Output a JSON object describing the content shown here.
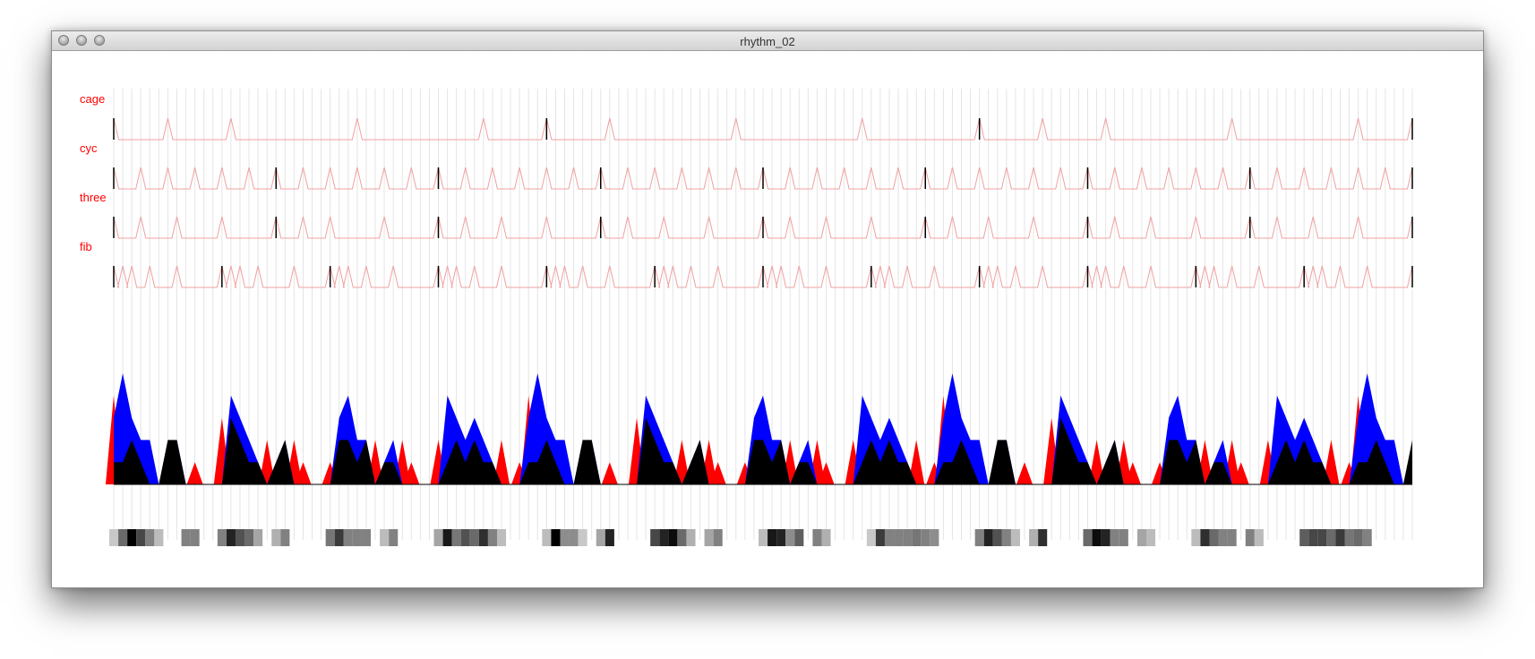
{
  "window": {
    "title": "rhythm_02",
    "buttons": [
      "close-button",
      "minimize-button",
      "zoom-button"
    ]
  },
  "colors": {
    "label": "#ff0000",
    "track_line": "#f0a0a0",
    "beat_marker": "#000000",
    "grid": "#e4e4e4",
    "area_red": "#ff0000",
    "area_blue": "#0000ff",
    "area_black": "#000000"
  },
  "grid": {
    "steps": 144,
    "measure": 12
  },
  "tracks": [
    {
      "label": "cage",
      "pulses": [
        0,
        6,
        13,
        27,
        41,
        48,
        55,
        69,
        83,
        96,
        103,
        110,
        124,
        138,
        144
      ],
      "markers": [
        0,
        48,
        96,
        144
      ]
    },
    {
      "label": "cyc",
      "pulses": [
        0,
        3,
        6,
        9,
        12,
        15,
        18,
        21,
        24,
        27,
        30,
        33,
        36,
        39,
        42,
        45,
        48,
        51,
        54,
        57,
        60,
        63,
        66,
        69,
        72,
        75,
        78,
        81,
        84,
        87,
        90,
        93,
        96,
        99,
        102,
        105,
        108,
        111,
        114,
        117,
        120,
        123,
        126,
        129,
        132,
        135,
        138,
        141,
        144
      ],
      "markers": [
        0,
        18,
        36,
        54,
        72,
        90,
        108,
        126,
        144
      ]
    },
    {
      "label": "three",
      "pulses": [
        0,
        3,
        7,
        12,
        18,
        21,
        24,
        30,
        36,
        39,
        43,
        48,
        54,
        57,
        61,
        66,
        72,
        75,
        79,
        84,
        90,
        93,
        97,
        102,
        108,
        111,
        115,
        120,
        126,
        129,
        133,
        138,
        144
      ],
      "markers": [
        0,
        18,
        36,
        54,
        72,
        90,
        108,
        126,
        144
      ]
    },
    {
      "label": "fib",
      "pulses": [
        0,
        1,
        2,
        4,
        7,
        12,
        13,
        14,
        16,
        20,
        24,
        25,
        26,
        28,
        31,
        36,
        37,
        38,
        40,
        43,
        48,
        49,
        50,
        52,
        55,
        60,
        61,
        62,
        64,
        67,
        72,
        73,
        74,
        76,
        79,
        84,
        85,
        86,
        88,
        91,
        96,
        97,
        98,
        100,
        103,
        108,
        109,
        110,
        112,
        115,
        120,
        121,
        122,
        124,
        127,
        132,
        133,
        134,
        136,
        139,
        144
      ],
      "markers": [
        0,
        12,
        24,
        36,
        48,
        60,
        72,
        84,
        96,
        108,
        120,
        132,
        144
      ]
    }
  ],
  "density": {
    "group_start": 12,
    "group_period": 12,
    "blue": [
      3,
      5,
      3,
      2,
      2,
      0,
      1,
      2,
      0,
      0,
      0,
      0,
      0,
      4,
      3,
      2,
      1,
      0,
      1,
      2,
      0,
      0,
      0,
      0,
      0,
      3,
      4,
      2,
      2,
      0,
      1,
      2,
      0,
      0,
      0,
      0,
      0,
      4,
      3,
      2,
      3,
      2,
      1,
      0,
      0,
      0
    ],
    "black": [
      1,
      1,
      2,
      1,
      0,
      0,
      2,
      2,
      0,
      0,
      0,
      0,
      0,
      3,
      2,
      1,
      1,
      0,
      1,
      2,
      0,
      0,
      0,
      0,
      0,
      2,
      2,
      1,
      2,
      0,
      1,
      1,
      0,
      0,
      0,
      0,
      0,
      1,
      2,
      1,
      2,
      1,
      1,
      0,
      0,
      0
    ],
    "red": [
      4,
      0,
      0,
      0,
      0,
      0,
      0,
      0,
      0,
      1,
      0,
      0,
      3,
      0,
      0,
      0,
      0,
      2,
      0,
      0,
      2,
      1,
      0,
      0,
      1,
      0,
      0,
      0,
      0,
      2,
      0,
      0,
      2,
      1,
      0,
      0,
      2,
      0,
      0,
      0,
      0,
      0,
      0,
      2,
      0,
      1
    ],
    "vmax": 5
  },
  "heat": {
    "groups": 12,
    "group_period": 12,
    "cell_values": [
      [
        0.15,
        0.55,
        1.0,
        0.7,
        0.45,
        0.2,
        0,
        0,
        0.45,
        0.45
      ],
      [
        0.45,
        0.85,
        0.65,
        0.55,
        0.3,
        0,
        0.25,
        0.45,
        0,
        0
      ],
      [
        0.5,
        0.75,
        0.45,
        0.45,
        0.45,
        0,
        0.2,
        0.45,
        0,
        0
      ],
      [
        0.3,
        0.9,
        0.5,
        0.65,
        0.55,
        0.8,
        0.45,
        0.2,
        0,
        0
      ],
      [
        0.2,
        1.0,
        0.4,
        0.4,
        0.15,
        0,
        0.3,
        0.85,
        0,
        0
      ],
      [
        0.7,
        0.85,
        0.95,
        0.55,
        0.25,
        0,
        0.3,
        0.45,
        0,
        0
      ],
      [
        0.2,
        0.9,
        0.85,
        0.4,
        0.6,
        0,
        0.45,
        0.25,
        0,
        0
      ],
      [
        0.15,
        0.75,
        0.45,
        0.45,
        0.45,
        0.5,
        0.45,
        0.4,
        0,
        0
      ],
      [
        0.45,
        0.85,
        0.65,
        0.45,
        0.2,
        0,
        0.25,
        0.8,
        0,
        0
      ],
      [
        0.55,
        0.95,
        0.85,
        0.45,
        0.45,
        0,
        0.3,
        0.2,
        0,
        0
      ],
      [
        0.2,
        0.8,
        0.55,
        0.45,
        0.45,
        0,
        0.45,
        0.2,
        0,
        0
      ],
      [
        0.6,
        0.7,
        0.7,
        0.55,
        0.75,
        0.5,
        0.55,
        0.45,
        0,
        0
      ]
    ]
  }
}
